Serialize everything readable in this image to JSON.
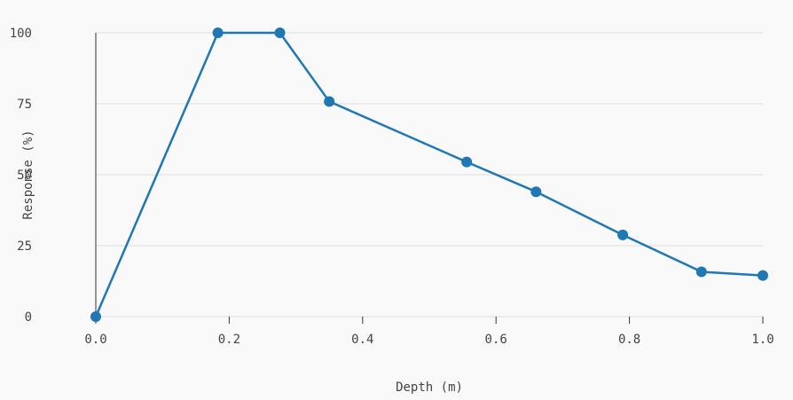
{
  "chart_data": {
    "type": "line",
    "title": "",
    "xlabel": "Depth (m)",
    "ylabel": "Response (%)",
    "xlim": [
      0.0,
      1.0
    ],
    "ylim": [
      0,
      100
    ],
    "x_ticks": [
      0.0,
      0.2,
      0.4,
      0.6,
      0.8,
      1.0
    ],
    "x_tick_labels": [
      "0.0",
      "0.2",
      "0.4",
      "0.6",
      "0.8",
      "1.0"
    ],
    "y_ticks": [
      0,
      25,
      50,
      75,
      100
    ],
    "y_tick_labels": [
      "0",
      "25",
      "50",
      "75",
      "100"
    ],
    "grid": "horizontal",
    "color": "#1f77b4",
    "series": [
      {
        "x": [
          0.0,
          0.183,
          0.276,
          0.35,
          0.556,
          0.66,
          0.79,
          0.908,
          1.0
        ],
        "y": [
          0,
          100,
          100,
          75.8,
          54.5,
          44.0,
          28.8,
          15.8,
          14.5
        ]
      }
    ]
  }
}
